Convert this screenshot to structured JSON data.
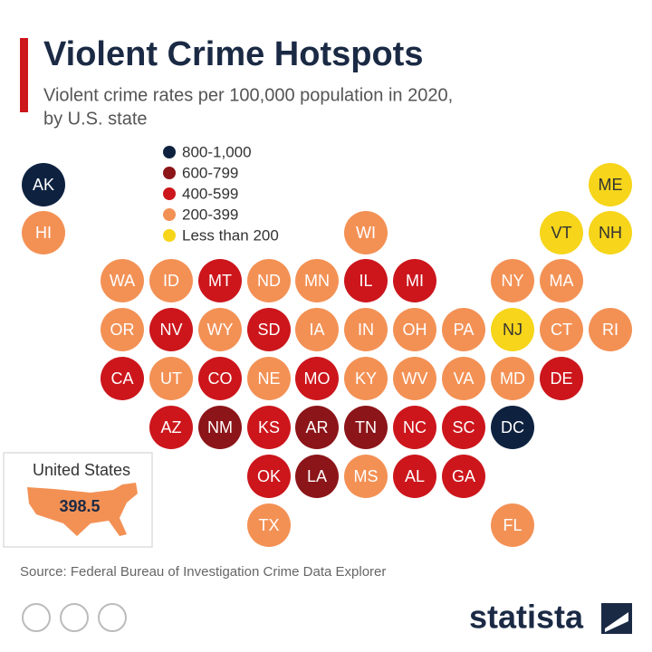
{
  "header": {
    "title": "Violent Crime Hotspots",
    "subtitle_lines": [
      "Violent crime rates per 100,000 population in 2020,",
      "by U.S. state"
    ]
  },
  "legend": [
    {
      "label": "800-1,000",
      "color": "#0e2240"
    },
    {
      "label": "600-799",
      "color": "#8c1519"
    },
    {
      "label": "400-599",
      "color": "#cc161c"
    },
    {
      "label": "200-399",
      "color": "#f39155"
    },
    {
      "label": "Less than 200",
      "color": "#f6d51a"
    }
  ],
  "tiles": [
    {
      "label": "AK",
      "level": 0
    },
    {
      "label": "HI",
      "level": 3
    },
    {
      "label": "WI",
      "level": 3
    },
    {
      "label": "VT",
      "level": 4
    },
    {
      "label": "NH",
      "level": 4
    },
    {
      "label": "ME",
      "level": 4
    },
    {
      "label": "WA",
      "level": 3
    },
    {
      "label": "ID",
      "level": 3
    },
    {
      "label": "MT",
      "level": 2
    },
    {
      "label": "ND",
      "level": 3
    },
    {
      "label": "MN",
      "level": 3
    },
    {
      "label": "IL",
      "level": 2
    },
    {
      "label": "MI",
      "level": 2
    },
    {
      "label": "NY",
      "level": 3
    },
    {
      "label": "MA",
      "level": 3
    },
    {
      "label": "OR",
      "level": 3
    },
    {
      "label": "NV",
      "level": 2
    },
    {
      "label": "WY",
      "level": 3
    },
    {
      "label": "SD",
      "level": 2
    },
    {
      "label": "IA",
      "level": 3
    },
    {
      "label": "IN",
      "level": 3
    },
    {
      "label": "OH",
      "level": 3
    },
    {
      "label": "PA",
      "level": 3
    },
    {
      "label": "NJ",
      "level": 4
    },
    {
      "label": "CT",
      "level": 3
    },
    {
      "label": "RI",
      "level": 3
    },
    {
      "label": "CA",
      "level": 2
    },
    {
      "label": "UT",
      "level": 3
    },
    {
      "label": "CO",
      "level": 2
    },
    {
      "label": "NE",
      "level": 3
    },
    {
      "label": "MO",
      "level": 2
    },
    {
      "label": "KY",
      "level": 3
    },
    {
      "label": "WV",
      "level": 3
    },
    {
      "label": "VA",
      "level": 3
    },
    {
      "label": "MD",
      "level": 3
    },
    {
      "label": "DE",
      "level": 2
    },
    {
      "label": "AZ",
      "level": 2
    },
    {
      "label": "NM",
      "level": 1
    },
    {
      "label": "KS",
      "level": 2
    },
    {
      "label": "AR",
      "level": 1
    },
    {
      "label": "TN",
      "level": 1
    },
    {
      "label": "NC",
      "level": 2
    },
    {
      "label": "SC",
      "level": 2
    },
    {
      "label": "DC",
      "level": 0
    },
    {
      "label": "OK",
      "level": 2
    },
    {
      "label": "LA",
      "level": 1
    },
    {
      "label": "MS",
      "level": 3
    },
    {
      "label": "AL",
      "level": 2
    },
    {
      "label": "GA",
      "level": 2
    },
    {
      "label": "TX",
      "level": 3
    },
    {
      "label": "FL",
      "level": 3
    }
  ],
  "us_summary": {
    "label": "United States",
    "value": 398.5
  },
  "footer": {
    "source": "Source: Federal Bureau of Investigation Crime Data Explorer",
    "logo": "statista"
  }
}
